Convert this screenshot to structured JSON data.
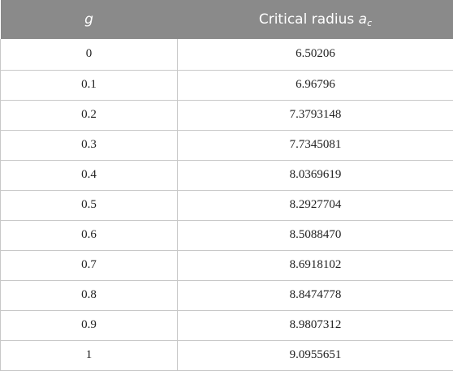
{
  "table": {
    "header": {
      "col1": "g",
      "col2_prefix": "Critical radius ",
      "col2_symbol": "a",
      "col2_subscript": "c"
    },
    "rows": [
      {
        "g": "0",
        "radius": "6.50206"
      },
      {
        "g": "0.1",
        "radius": "6.96796"
      },
      {
        "g": "0.2",
        "radius": "7.3793148"
      },
      {
        "g": "0.3",
        "radius": "7.7345081"
      },
      {
        "g": "0.4",
        "radius": "8.0369619"
      },
      {
        "g": "0.5",
        "radius": "8.2927704"
      },
      {
        "g": "0.6",
        "radius": "8.5088470"
      },
      {
        "g": "0.7",
        "radius": "8.6918102"
      },
      {
        "g": "0.8",
        "radius": "8.8474778"
      },
      {
        "g": "0.9",
        "radius": "8.9807312"
      },
      {
        "g": "1",
        "radius": "9.0955651"
      }
    ]
  }
}
